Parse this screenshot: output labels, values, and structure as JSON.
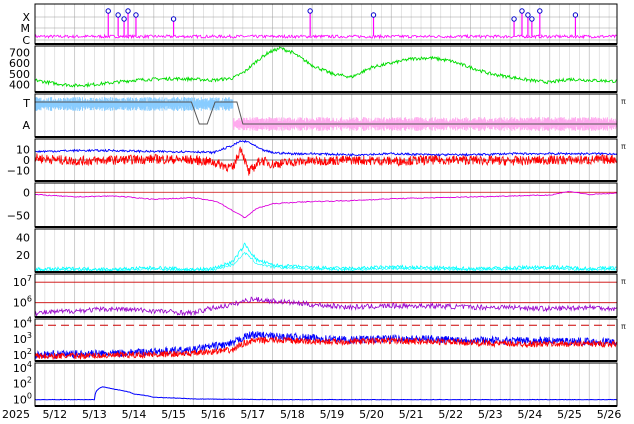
{
  "chart_data": {
    "type": "line",
    "time_axis": {
      "year_label": "2025",
      "tick_labels": [
        "5/12",
        "5/13",
        "5/14",
        "5/15",
        "5/16",
        "5/17",
        "5/18",
        "5/19",
        "5/20",
        "5/21",
        "5/22",
        "5/23",
        "5/24",
        "5/25",
        "5/26"
      ],
      "range_days": [
        0,
        14.7
      ],
      "grid": true
    },
    "colors": {
      "xray": "#ff00ff",
      "speed": "#00dd00",
      "mag_t": "#88ccff",
      "mag_a": "#ffaaee",
      "bt": "#0000ff",
      "bz": "#ff0000",
      "dst": "#dd00dd",
      "density": "#00ffff",
      "proton": "#9900cc",
      "electron_a": "#0000ff",
      "electron_b": "#ff0000",
      "cosmic": "#0000ff",
      "redline": "#cc0000",
      "grid": "#c8c8c8"
    },
    "panels": [
      {
        "id": "xray",
        "ytick_labels": [
          "X",
          "M",
          "C"
        ],
        "flare_markers_days": [
          1.85,
          2.1,
          2.25,
          2.35,
          2.55,
          3.5,
          6.95,
          8.55,
          12.1,
          12.3,
          12.45,
          12.55,
          12.75,
          13.65
        ]
      },
      {
        "id": "solar-wind-speed",
        "ytick_labels": [
          "700",
          "600",
          "500",
          "400"
        ],
        "ylim": [
          330,
          760
        ],
        "series": [
          {
            "x": [
              0,
              0.5,
              1,
              1.5,
              2,
              2.5,
              3,
              3.5,
              4,
              4.5,
              5,
              5.3,
              5.6,
              5.9,
              6.2,
              6.5,
              7,
              7.5,
              8,
              8.5,
              9,
              9.5,
              10,
              10.5,
              11,
              11.5,
              12,
              12.5,
              13,
              13.5,
              14,
              14.7
            ],
            "y": [
              440,
              410,
              390,
              400,
              420,
              440,
              450,
              455,
              450,
              440,
              460,
              520,
              620,
              700,
              740,
              700,
              580,
              500,
              470,
              560,
              600,
              640,
              650,
              620,
              560,
              500,
              470,
              440,
              420,
              450,
              440,
              430
            ]
          }
        ]
      },
      {
        "id": "imf-sector",
        "ytick_labels": [
          "T",
          "A"
        ],
        "side_label": "π"
      },
      {
        "id": "imf-bt-bz",
        "ytick_labels": [
          "10",
          "0",
          "−10"
        ],
        "ylim": [
          -20,
          20
        ],
        "side_label": "π",
        "series": [
          {
            "name": "Bt",
            "x": [
              0,
              1,
              2,
              3,
              4,
              4.5,
              5,
              5.2,
              5.4,
              5.7,
              6,
              6.5,
              7,
              8,
              9,
              10,
              11,
              12,
              13,
              14,
              14.7
            ],
            "y": [
              8,
              9,
              9,
              8,
              8,
              7,
              14,
              18,
              17,
              10,
              7,
              6,
              6,
              5,
              6,
              5,
              5,
              6,
              6,
              6,
              6
            ]
          },
          {
            "name": "Bz",
            "x": [
              0,
              1,
              2,
              3,
              4,
              4.5,
              5,
              5.2,
              5.4,
              5.7,
              6,
              6.5,
              7,
              8,
              9,
              10,
              11,
              12,
              13,
              14,
              14.7
            ],
            "y": [
              2,
              -1,
              0,
              1,
              0,
              -2,
              -8,
              12,
              -12,
              0,
              -4,
              -2,
              -1,
              0,
              -1,
              0,
              0,
              -1,
              0,
              0,
              1
            ]
          }
        ]
      },
      {
        "id": "dst",
        "ytick_labels": [
          "0",
          "−50"
        ],
        "ylim": [
          -75,
          20
        ],
        "series": [
          {
            "x": [
              0,
              1,
              2,
              3,
              4,
              4.6,
              5,
              5.3,
              5.6,
              6,
              6.5,
              7,
              8,
              9,
              10,
              11,
              12,
              13,
              13.5,
              14,
              14.7
            ],
            "y": [
              -5,
              -10,
              -8,
              -15,
              -12,
              -20,
              -40,
              -55,
              -35,
              -25,
              -22,
              -20,
              -18,
              -14,
              -12,
              -10,
              -8,
              -6,
              2,
              -5,
              -2
            ]
          }
        ]
      },
      {
        "id": "density",
        "ytick_labels": [
          "40",
          "20"
        ],
        "ylim": [
          0,
          50
        ],
        "series": [
          {
            "x": [
              0,
              1,
              2,
              3,
              4,
              4.5,
              5,
              5.3,
              5.6,
              6,
              7,
              8,
              9,
              10,
              11,
              12,
              13,
              14,
              14.7
            ],
            "y": [
              3,
              4,
              3,
              5,
              3,
              4,
              12,
              32,
              14,
              8,
              5,
              4,
              6,
              5,
              4,
              5,
              6,
              4,
              5
            ]
          }
        ]
      },
      {
        "id": "proton-flux",
        "ytick_labels": [
          "10^7",
          "10^6"
        ],
        "side_label": "π",
        "series": [
          {
            "x": [
              0,
              1,
              2,
              3,
              4,
              5,
              5.5,
              6,
              7,
              8,
              9,
              10,
              11,
              12,
              13,
              14,
              14.7
            ],
            "y": [
              300000.0,
              400000.0,
              500000.0,
              400000.0,
              300000.0,
              800000.0,
              1500000.0,
              1200000.0,
              800000.0,
              600000.0,
              700000.0,
              700000.0,
              600000.0,
              600000.0,
              500000.0,
              600000.0,
              500000.0
            ]
          }
        ]
      },
      {
        "id": "electron-flux",
        "ytick_labels": [
          "10^4",
          "10^3",
          "10^2"
        ],
        "side_label": "π",
        "series": [
          {
            "name": "GOES-A",
            "x": [
              0,
              2,
              4,
              5,
              5.5,
              6,
              7,
              8,
              9,
              10,
              11,
              12,
              13,
              14,
              14.7
            ],
            "y": [
              100,
              120,
              200,
              500,
              2000,
              1500,
              1200,
              900,
              1100,
              1000,
              900,
              800,
              800,
              700,
              700
            ]
          },
          {
            "name": "GOES-B",
            "x": [
              0,
              2,
              4,
              5,
              5.5,
              6,
              7,
              8,
              9,
              10,
              11,
              12,
              13,
              14,
              14.7
            ],
            "y": [
              80,
              90,
              120,
              200,
              800,
              900,
              700,
              700,
              800,
              700,
              600,
              500,
              500,
              500,
              500
            ]
          }
        ]
      },
      {
        "id": "cosmic-ray",
        "ytick_labels": [
          "10^4",
          "10^2",
          "10^0"
        ],
        "series": [
          {
            "x": [
              0,
              1.5,
              1.7,
              2,
              2.5,
              3,
              4,
              6,
              8,
              10,
              12,
              14,
              14.7
            ],
            "y": [
              1,
              1,
              40,
              20,
              5,
              2,
              1.2,
              1,
              1,
              1,
              1,
              1,
              1
            ]
          }
        ]
      }
    ]
  }
}
